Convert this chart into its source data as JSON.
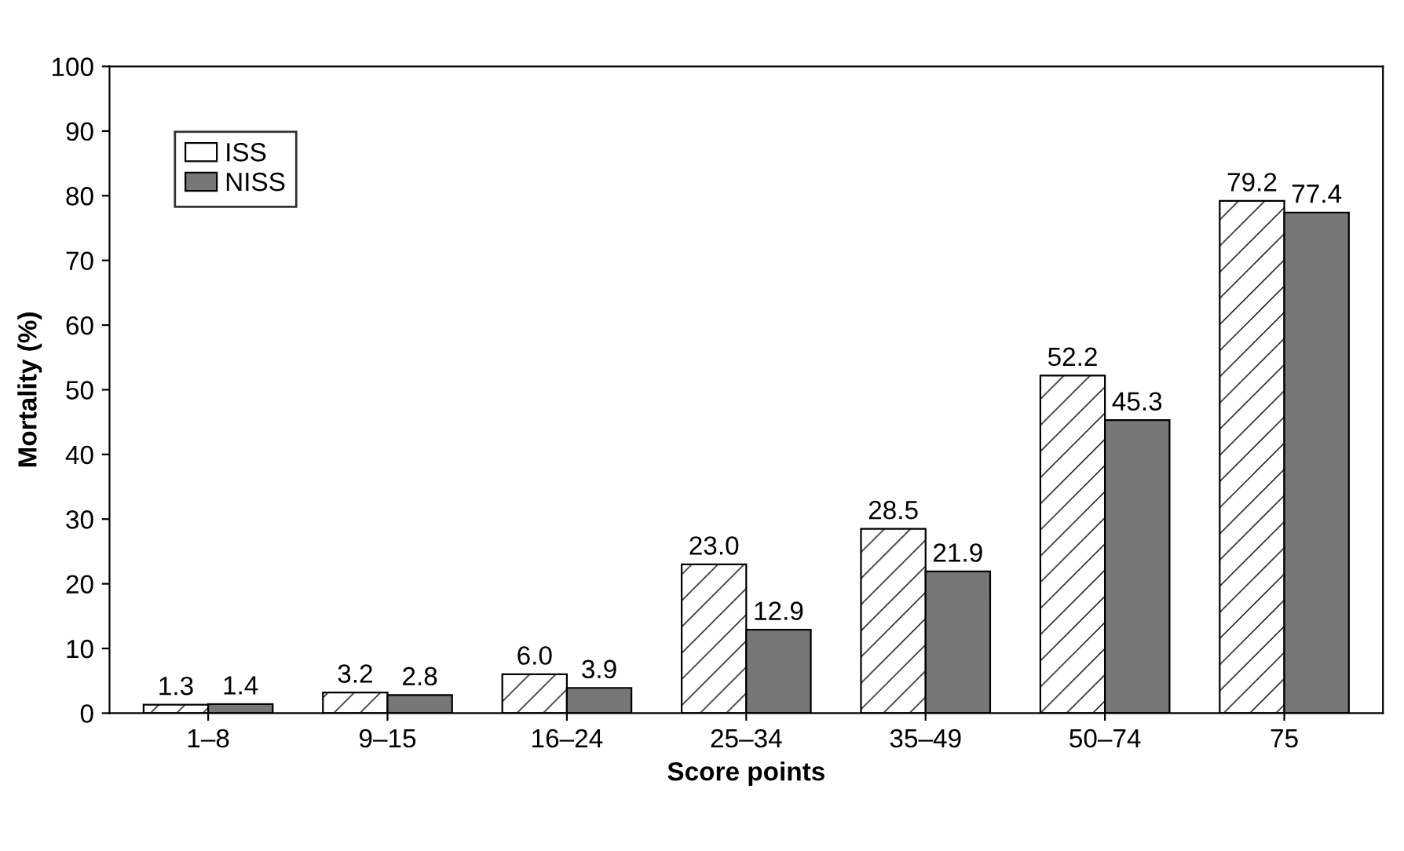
{
  "chart_data": {
    "type": "bar",
    "xlabel": "Score points",
    "ylabel": "Mortality (%)",
    "categories": [
      "1–8",
      "9–15",
      "16–24",
      "25–34",
      "35–49",
      "50–74",
      "75"
    ],
    "series": [
      {
        "name": "ISS",
        "color": "#ffffff",
        "values": [
          1.3,
          3.2,
          6.0,
          23.0,
          28.5,
          52.2,
          79.2
        ],
        "value_labels": [
          "1.3",
          "3.2",
          "6.0",
          "23.0",
          "28.5",
          "52.2",
          "79.2"
        ]
      },
      {
        "name": "NISS",
        "color": "#777777",
        "values": [
          1.4,
          2.8,
          3.9,
          12.9,
          21.9,
          45.3,
          77.4
        ],
        "value_labels": [
          "1.4",
          "2.8",
          "3.9",
          "12.9",
          "21.9",
          "45.3",
          "77.4"
        ]
      }
    ],
    "ylim": [
      0,
      100
    ],
    "yticks": [
      0,
      10,
      20,
      30,
      40,
      50,
      60,
      70,
      80,
      90,
      100
    ],
    "grid": false,
    "legend": "top left"
  }
}
